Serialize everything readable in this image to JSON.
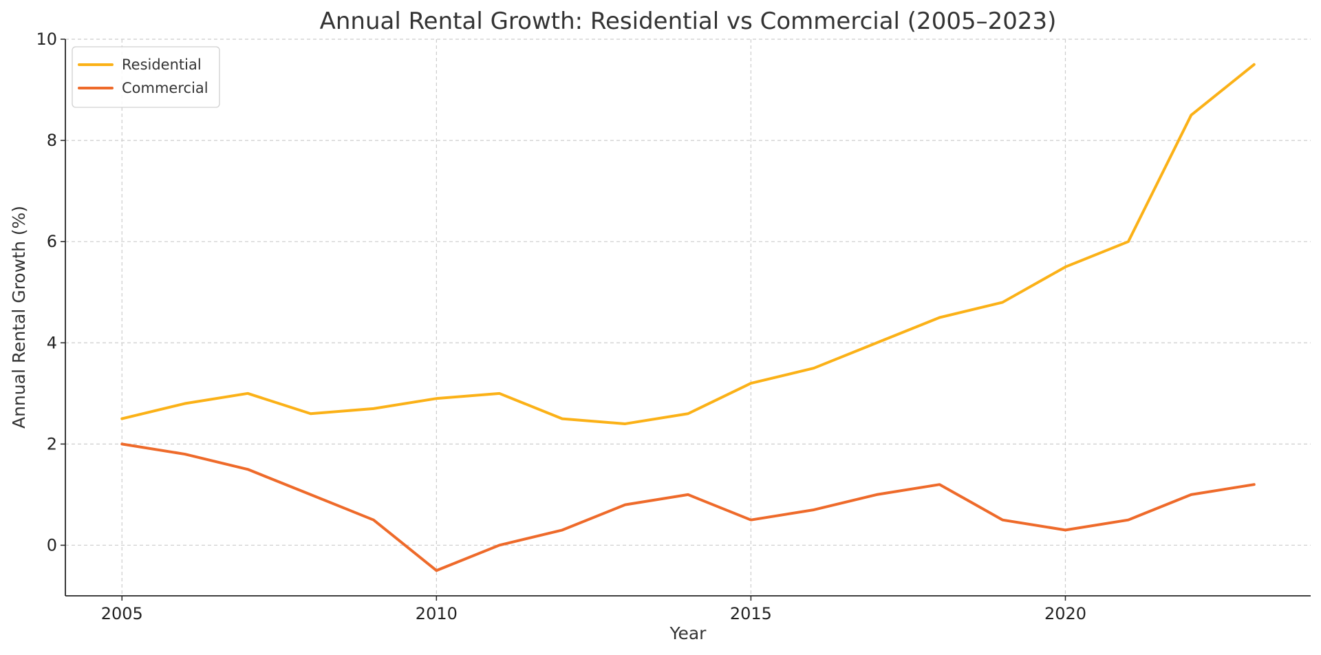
{
  "chart_data": {
    "type": "line",
    "title": "Annual Rental Growth: Residential vs Commercial (2005–2023)",
    "xlabel": "Year",
    "ylabel": "Annual Rental Growth (%)",
    "x": [
      2005,
      2006,
      2007,
      2008,
      2009,
      2010,
      2011,
      2012,
      2013,
      2014,
      2015,
      2016,
      2017,
      2018,
      2019,
      2020,
      2021,
      2022,
      2023
    ],
    "xlim": [
      2004.1,
      2023.9
    ],
    "ylim": [
      -1,
      10
    ],
    "xticks": [
      2005,
      2010,
      2015,
      2020
    ],
    "yticks": [
      0,
      2,
      4,
      6,
      8,
      10
    ],
    "grid": true,
    "legend_position": "top-left",
    "series": [
      {
        "name": "Residential",
        "color": "#FBB117",
        "values": [
          2.5,
          2.8,
          3.0,
          2.6,
          2.7,
          2.9,
          3.0,
          2.5,
          2.4,
          2.6,
          3.2,
          3.5,
          4.0,
          4.5,
          4.8,
          5.5,
          6.0,
          8.5,
          9.5
        ]
      },
      {
        "name": "Commercial",
        "color": "#EE6A2A",
        "values": [
          2.0,
          1.8,
          1.5,
          1.0,
          0.5,
          -0.5,
          0.0,
          0.3,
          0.8,
          1.0,
          0.5,
          0.7,
          1.0,
          1.2,
          0.5,
          0.3,
          0.5,
          1.0,
          1.2
        ]
      }
    ]
  }
}
